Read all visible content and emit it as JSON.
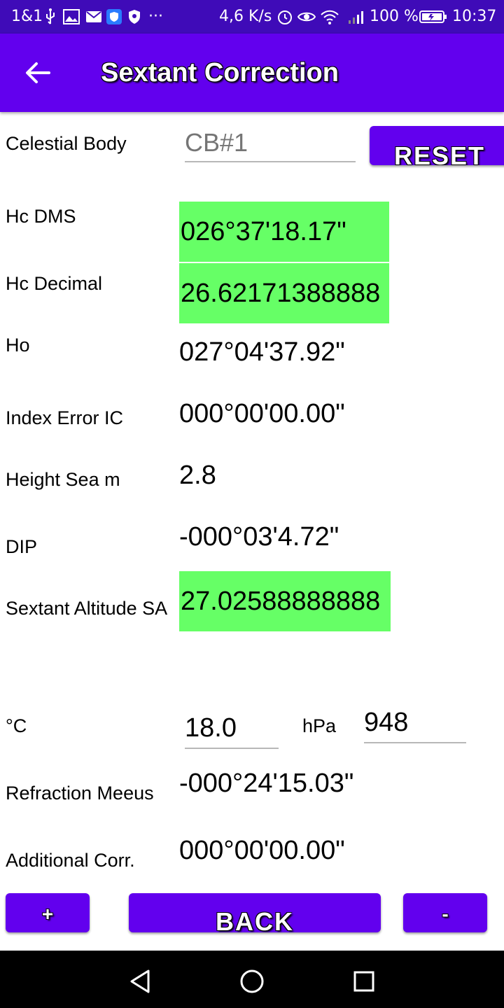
{
  "status_bar": {
    "carrier": "1&1",
    "more": "···",
    "speed": "4,6 K/s",
    "battery": "100 %",
    "time": "10:37",
    "icons": [
      "usb-icon",
      "image-icon",
      "mail-icon",
      "shield-app-icon",
      "shield-icon",
      "alarm-icon",
      "eye-icon",
      "wifi-icon",
      "signal-icon",
      "battery-icon"
    ]
  },
  "app_bar": {
    "title": "Sextant Correction",
    "back_icon": "arrow-left-icon"
  },
  "form": {
    "celestial_body": {
      "label": "Celestial Body",
      "placeholder": "CB#1",
      "value": ""
    },
    "reset_label": "RESET",
    "hc_dms": {
      "label": "Hc DMS",
      "value": "026°37'18.17\""
    },
    "hc_decimal": {
      "label": "Hc Decimal",
      "value": "26.62171388888"
    },
    "ho": {
      "label": "Ho",
      "value": "027°04'37.92\""
    },
    "index_error": {
      "label": "Index Error IC",
      "value": "000°00'00.00\""
    },
    "height_sea": {
      "label": "Height Sea m",
      "value": "2.8"
    },
    "dip": {
      "label": "DIP",
      "value": "-000°03'4.72\""
    },
    "sextant_altitude": {
      "label": "Sextant Altitude SA",
      "value": "27.02588888888"
    },
    "temperature": {
      "label": "°C",
      "value": "18.0"
    },
    "pressure": {
      "label": "hPa",
      "value": "948"
    },
    "refraction": {
      "label": "Refraction Meeus",
      "value": "-000°24'15.03\""
    },
    "additional": {
      "label": "Additional Corr.",
      "value": "000°00'00.00\""
    }
  },
  "buttons": {
    "plus": "+",
    "back": "BACK",
    "minus": "-"
  },
  "colors": {
    "status_bar": "#3f0bb8",
    "primary": "#6200ee",
    "highlight": "#66ff66",
    "nav_bar": "#000000"
  }
}
